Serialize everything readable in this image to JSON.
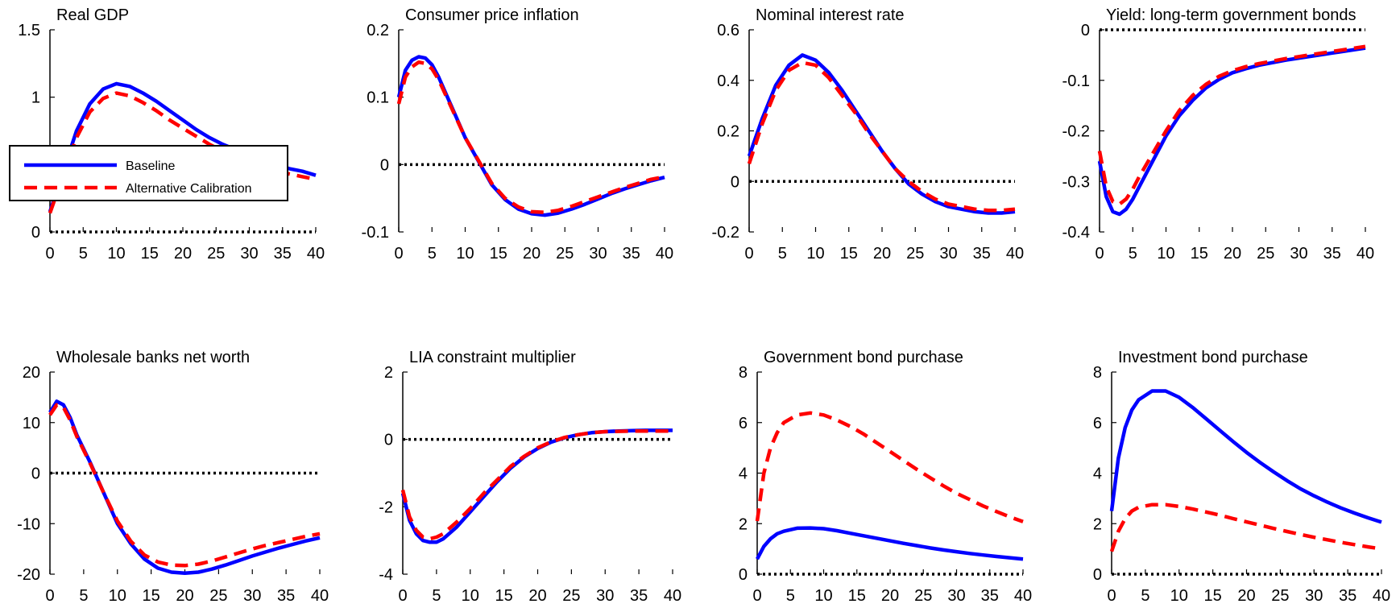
{
  "colors": {
    "baseline": "#0000ff",
    "alternative": "#ff0000",
    "zero_line": "#000000",
    "axis": "#000000",
    "background": "#ffffff"
  },
  "legend": {
    "placement": "inside first panel, middle-left",
    "items": [
      {
        "key": "baseline",
        "label": "Baseline",
        "style": "solid"
      },
      {
        "key": "alternative",
        "label": "Alternative Calibration",
        "style": "dashed"
      }
    ]
  },
  "chart_data": [
    {
      "type": "line",
      "title": "Real GDP",
      "xlabel": "",
      "ylabel": "",
      "xlim": [
        0,
        40
      ],
      "ylim": [
        0,
        1.5
      ],
      "xticks": [
        0,
        5,
        10,
        15,
        20,
        25,
        30,
        35,
        40
      ],
      "yticks": [
        0,
        0.5,
        1,
        1.5
      ],
      "ytick_labels": [
        "0",
        "0.5",
        "1",
        "1.5"
      ],
      "zero_line": true,
      "grid": false,
      "x": [
        0,
        2,
        4,
        6,
        8,
        10,
        12,
        14,
        16,
        18,
        20,
        22,
        24,
        26,
        28,
        30,
        32,
        34,
        36,
        38,
        40
      ],
      "series": [
        {
          "key": "baseline",
          "values": [
            0.15,
            0.45,
            0.75,
            0.95,
            1.06,
            1.1,
            1.08,
            1.03,
            0.97,
            0.9,
            0.83,
            0.76,
            0.7,
            0.65,
            0.61,
            0.57,
            0.53,
            0.5,
            0.47,
            0.45,
            0.42
          ]
        },
        {
          "key": "alternative",
          "values": [
            0.14,
            0.42,
            0.7,
            0.89,
            0.99,
            1.03,
            1.01,
            0.96,
            0.9,
            0.83,
            0.77,
            0.71,
            0.65,
            0.6,
            0.56,
            0.52,
            0.49,
            0.46,
            0.43,
            0.41,
            0.39
          ]
        }
      ]
    },
    {
      "type": "line",
      "title": "Consumer price inflation",
      "xlabel": "",
      "ylabel": "",
      "xlim": [
        0,
        40
      ],
      "ylim": [
        -0.1,
        0.2
      ],
      "xticks": [
        0,
        5,
        10,
        15,
        20,
        25,
        30,
        35,
        40
      ],
      "yticks": [
        -0.1,
        0,
        0.1,
        0.2
      ],
      "ytick_labels": [
        "-0.1",
        "0",
        "0.1",
        "0.2"
      ],
      "zero_line": true,
      "grid": false,
      "x": [
        0,
        1,
        2,
        3,
        4,
        5,
        6,
        8,
        10,
        12,
        14,
        16,
        18,
        20,
        22,
        24,
        26,
        28,
        30,
        32,
        34,
        36,
        38,
        40
      ],
      "series": [
        {
          "key": "baseline",
          "values": [
            0.1,
            0.14,
            0.155,
            0.16,
            0.158,
            0.148,
            0.13,
            0.085,
            0.04,
            0.005,
            -0.03,
            -0.052,
            -0.066,
            -0.073,
            -0.075,
            -0.072,
            -0.066,
            -0.059,
            -0.051,
            -0.043,
            -0.036,
            -0.03,
            -0.024,
            -0.019
          ]
        },
        {
          "key": "alternative",
          "values": [
            0.09,
            0.13,
            0.145,
            0.152,
            0.15,
            0.142,
            0.126,
            0.083,
            0.04,
            0.006,
            -0.028,
            -0.05,
            -0.063,
            -0.07,
            -0.071,
            -0.068,
            -0.062,
            -0.055,
            -0.048,
            -0.041,
            -0.034,
            -0.028,
            -0.022,
            -0.018
          ]
        }
      ]
    },
    {
      "type": "line",
      "title": "Nominal interest rate",
      "xlabel": "",
      "ylabel": "",
      "xlim": [
        0,
        40
      ],
      "ylim": [
        -0.2,
        0.6
      ],
      "xticks": [
        0,
        5,
        10,
        15,
        20,
        25,
        30,
        35,
        40
      ],
      "yticks": [
        -0.2,
        0,
        0.2,
        0.4,
        0.6
      ],
      "ytick_labels": [
        "-0.2",
        "0",
        "0.2",
        "0.4",
        "0.6"
      ],
      "zero_line": true,
      "grid": false,
      "x": [
        0,
        2,
        4,
        6,
        8,
        10,
        12,
        14,
        16,
        18,
        20,
        22,
        24,
        26,
        28,
        30,
        32,
        34,
        36,
        38,
        40
      ],
      "series": [
        {
          "key": "baseline",
          "values": [
            0.1,
            0.25,
            0.38,
            0.46,
            0.5,
            0.48,
            0.43,
            0.36,
            0.28,
            0.2,
            0.12,
            0.05,
            -0.01,
            -0.05,
            -0.08,
            -0.1,
            -0.11,
            -0.12,
            -0.125,
            -0.125,
            -0.12
          ]
        },
        {
          "key": "alternative",
          "values": [
            0.07,
            0.23,
            0.36,
            0.44,
            0.47,
            0.46,
            0.41,
            0.34,
            0.27,
            0.19,
            0.12,
            0.05,
            0.0,
            -0.04,
            -0.07,
            -0.09,
            -0.1,
            -0.11,
            -0.115,
            -0.115,
            -0.11
          ]
        }
      ]
    },
    {
      "type": "line",
      "title": "Yield: long-term government bonds",
      "xlabel": "",
      "ylabel": "",
      "xlim": [
        0,
        40
      ],
      "ylim": [
        -0.4,
        0
      ],
      "xticks": [
        0,
        5,
        10,
        15,
        20,
        25,
        30,
        35,
        40
      ],
      "yticks": [
        -0.4,
        -0.3,
        -0.2,
        -0.1,
        0
      ],
      "ytick_labels": [
        "-0.4",
        "-0.3",
        "-0.2",
        "-0.1",
        "0"
      ],
      "zero_line": true,
      "grid": false,
      "x": [
        0,
        1,
        2,
        3,
        4,
        5,
        6,
        8,
        10,
        12,
        14,
        16,
        18,
        20,
        22,
        24,
        26,
        28,
        30,
        32,
        34,
        36,
        38,
        40
      ],
      "series": [
        {
          "key": "baseline",
          "values": [
            -0.26,
            -0.33,
            -0.36,
            -0.365,
            -0.355,
            -0.335,
            -0.31,
            -0.26,
            -0.21,
            -0.17,
            -0.14,
            -0.115,
            -0.098,
            -0.085,
            -0.077,
            -0.07,
            -0.065,
            -0.06,
            -0.056,
            -0.052,
            -0.048,
            -0.044,
            -0.04,
            -0.036
          ]
        },
        {
          "key": "alternative",
          "values": [
            -0.24,
            -0.31,
            -0.34,
            -0.345,
            -0.335,
            -0.315,
            -0.29,
            -0.245,
            -0.2,
            -0.16,
            -0.13,
            -0.108,
            -0.092,
            -0.081,
            -0.073,
            -0.067,
            -0.062,
            -0.057,
            -0.053,
            -0.049,
            -0.045,
            -0.041,
            -0.037,
            -0.033
          ]
        }
      ]
    },
    {
      "type": "line",
      "title": "Wholesale banks net worth",
      "xlabel": "",
      "ylabel": "",
      "xlim": [
        0,
        40
      ],
      "ylim": [
        -20,
        20
      ],
      "xticks": [
        0,
        5,
        10,
        15,
        20,
        25,
        30,
        35,
        40
      ],
      "yticks": [
        -20,
        -10,
        0,
        10,
        20
      ],
      "ytick_labels": [
        "-20",
        "-10",
        "0",
        "10",
        "20"
      ],
      "zero_line": true,
      "grid": false,
      "x": [
        0,
        1,
        2,
        3,
        4,
        6,
        8,
        10,
        12,
        14,
        16,
        18,
        20,
        22,
        24,
        26,
        28,
        30,
        32,
        34,
        36,
        38,
        40
      ],
      "series": [
        {
          "key": "baseline",
          "values": [
            12,
            14.2,
            13.5,
            11,
            7.5,
            2,
            -4,
            -10,
            -14,
            -17,
            -18.8,
            -19.6,
            -19.8,
            -19.6,
            -19,
            -18.2,
            -17.3,
            -16.4,
            -15.6,
            -14.8,
            -14.1,
            -13.4,
            -12.8
          ]
        },
        {
          "key": "alternative",
          "values": [
            11.5,
            13.5,
            13,
            10.5,
            7.2,
            1.8,
            -4,
            -9.5,
            -13.5,
            -16.2,
            -17.6,
            -18.2,
            -18.3,
            -18,
            -17.4,
            -16.6,
            -15.8,
            -15,
            -14.3,
            -13.7,
            -13.1,
            -12.5,
            -12
          ]
        }
      ]
    },
    {
      "type": "line",
      "title": "LIA constraint multiplier",
      "xlabel": "",
      "ylabel": "",
      "xlim": [
        0,
        40
      ],
      "ylim": [
        -4,
        2
      ],
      "xticks": [
        0,
        5,
        10,
        15,
        20,
        25,
        30,
        35,
        40
      ],
      "yticks": [
        -4,
        -2,
        0,
        2
      ],
      "ytick_labels": [
        "-4",
        "-2",
        "0",
        "2"
      ],
      "zero_line": true,
      "grid": false,
      "x": [
        0,
        1,
        2,
        3,
        4,
        5,
        6,
        8,
        10,
        12,
        14,
        16,
        18,
        20,
        22,
        24,
        26,
        28,
        30,
        32,
        34,
        36,
        38,
        40
      ],
      "series": [
        {
          "key": "baseline",
          "values": [
            -1.6,
            -2.4,
            -2.8,
            -3.0,
            -3.05,
            -3.05,
            -2.95,
            -2.6,
            -2.15,
            -1.7,
            -1.25,
            -0.85,
            -0.52,
            -0.27,
            -0.08,
            0.05,
            0.14,
            0.2,
            0.23,
            0.25,
            0.26,
            0.27,
            0.27,
            0.27
          ]
        },
        {
          "key": "alternative",
          "values": [
            -1.5,
            -2.3,
            -2.7,
            -2.9,
            -2.95,
            -2.9,
            -2.8,
            -2.45,
            -2.05,
            -1.6,
            -1.2,
            -0.8,
            -0.5,
            -0.25,
            -0.07,
            0.06,
            0.14,
            0.2,
            0.23,
            0.24,
            0.25,
            0.25,
            0.25,
            0.25
          ]
        }
      ]
    },
    {
      "type": "line",
      "title": "Government bond purchase",
      "xlabel": "",
      "ylabel": "",
      "xlim": [
        0,
        40
      ],
      "ylim": [
        0,
        8
      ],
      "xticks": [
        0,
        5,
        10,
        15,
        20,
        25,
        30,
        35,
        40
      ],
      "yticks": [
        0,
        2,
        4,
        6,
        8
      ],
      "ytick_labels": [
        "0",
        "2",
        "4",
        "6",
        "8"
      ],
      "zero_line": true,
      "grid": false,
      "x": [
        0,
        1,
        2,
        3,
        4,
        6,
        8,
        10,
        12,
        14,
        16,
        18,
        20,
        22,
        24,
        26,
        28,
        30,
        32,
        34,
        36,
        38,
        40
      ],
      "series": [
        {
          "key": "baseline",
          "values": [
            0.6,
            1.1,
            1.4,
            1.6,
            1.7,
            1.82,
            1.83,
            1.8,
            1.72,
            1.62,
            1.52,
            1.42,
            1.32,
            1.22,
            1.13,
            1.04,
            0.96,
            0.89,
            0.82,
            0.76,
            0.7,
            0.65,
            0.6
          ]
        },
        {
          "key": "alternative",
          "values": [
            2.1,
            4.0,
            5.0,
            5.6,
            6.0,
            6.3,
            6.38,
            6.3,
            6.1,
            5.85,
            5.55,
            5.2,
            4.85,
            4.5,
            4.15,
            3.82,
            3.5,
            3.2,
            2.95,
            2.7,
            2.48,
            2.27,
            2.08
          ]
        }
      ]
    },
    {
      "type": "line",
      "title": "Investment bond purchase",
      "xlabel": "",
      "ylabel": "",
      "xlim": [
        0,
        40
      ],
      "ylim": [
        0,
        8
      ],
      "xticks": [
        0,
        5,
        10,
        15,
        20,
        25,
        30,
        35,
        40
      ],
      "yticks": [
        0,
        2,
        4,
        6,
        8
      ],
      "ytick_labels": [
        "0",
        "2",
        "4",
        "6",
        "8"
      ],
      "zero_line": true,
      "grid": false,
      "x": [
        0,
        1,
        2,
        3,
        4,
        6,
        8,
        10,
        12,
        14,
        16,
        18,
        20,
        22,
        24,
        26,
        28,
        30,
        32,
        34,
        36,
        38,
        40
      ],
      "series": [
        {
          "key": "baseline",
          "values": [
            2.5,
            4.6,
            5.8,
            6.5,
            6.9,
            7.25,
            7.25,
            7.0,
            6.6,
            6.15,
            5.7,
            5.25,
            4.82,
            4.42,
            4.05,
            3.7,
            3.38,
            3.1,
            2.85,
            2.62,
            2.42,
            2.23,
            2.06
          ]
        },
        {
          "key": "alternative",
          "values": [
            0.9,
            1.7,
            2.2,
            2.5,
            2.65,
            2.75,
            2.75,
            2.68,
            2.58,
            2.46,
            2.34,
            2.2,
            2.07,
            1.94,
            1.81,
            1.69,
            1.57,
            1.46,
            1.36,
            1.26,
            1.17,
            1.08,
            1.0
          ]
        }
      ]
    }
  ]
}
